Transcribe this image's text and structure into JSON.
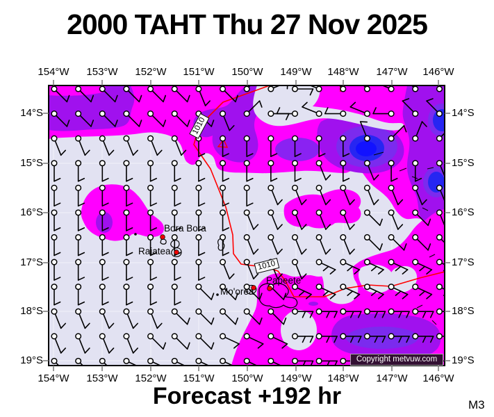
{
  "title": "2000 TAHT Thu 27 Nov 2025",
  "footer": {
    "forecast_label": "Forecast +192 hr",
    "model_label": "M3"
  },
  "axes": {
    "lon_labels": [
      "154°W",
      "153°W",
      "152°W",
      "151°W",
      "150°W",
      "149°W",
      "148°W",
      "147°W",
      "146°W"
    ],
    "lat_labels": [
      "14°S",
      "15°S",
      "16°S",
      "17°S",
      "18°S",
      "19°S"
    ]
  },
  "map": {
    "copyright": "Copyright metvuw.com",
    "isobar": {
      "value": "1010"
    },
    "places": {
      "bora_bora": "Bora Bora",
      "raiatea": "Raiatea",
      "moorea": "Mo'orea",
      "papeete": "Papeete"
    }
  },
  "colors": {
    "calm": "#e2e2f2",
    "magenta": "#ff00ff",
    "purple": "#a011ee",
    "violet": "#7b2bee",
    "violet_light": "#8a22f2",
    "blue": "#2626f2",
    "blue_bright": "#1212ff",
    "isobar_red": "#ff0000",
    "grid": "rgba(255,255,255,0.55)",
    "copyright_bg": "#331133",
    "land_outline": "#000000",
    "station_dot_red": "#ee0000"
  },
  "wind_barbs": {
    "cols": 17,
    "rows": 12,
    "grid": [
      "se1 se1 se1 se1 se1 se1 sse1 se1 ne1 ene1 e1 wnw1 nw1 nw1 wnw1 nw1 nnw1",
      "se1 se1 se1 se1 se1 se1 se1 sse1 ne1 e1 w1 wnw1 w1 wnw1 w1 nw1 nw1",
      "sse1 sse1 sse1 sse1 sse1 sse1 s1 s1 s1 s1 s1 s1 s1 nnw1 ne1 nne1 ne1",
      "s1 s1 s1 s1 s1 s1 s1 s1 s1 s1 s1 sse1 s1 sse1 s1 s1 sse1",
      "s1 s1 s1 s1 s1 s1 s1 s1 s1 sse1 sse1 sse1 sse1 sse1 sse1 sse1 sse1",
      "s1 s1 s1 s1 s1 s1 s1 s1 sse1 sse1 sse1 sse1 sse1 se1 sse1 se1 sse1",
      "s1 s1 s1 s1 s1 s1 s1 s1 sse1 sse1 sse1 sse1 sse1 se1 se1 se1 se1",
      "s1 s1 s1 s1 s1 s1 s1 sse1 sse1 sse1 sse1 ese2 ese2 ese2 ese2 ese2 ese2",
      "s1 s1 s1 s1 s1 s1 se1 se1 se1 se1 ese2 ese2 ese2 ese2 ese2 ese2 ese2",
      "sse1 sse1 sse1 sse1 sse1 se1 se1 se1 se1 se1 e2 e2 e2 e2 e2 e2 e2",
      "sse1 sse1 sse1 sse1 se1 se1 se1 ese1 ese1 ese1 e2 e2 e2 e2 e2 e2 e2",
      "se1 se1 se1 ese1 ese1 ese1 ese1 ese1 ese1 ese1 e2 e2 e2 e2 e2 e2 e2"
    ]
  }
}
